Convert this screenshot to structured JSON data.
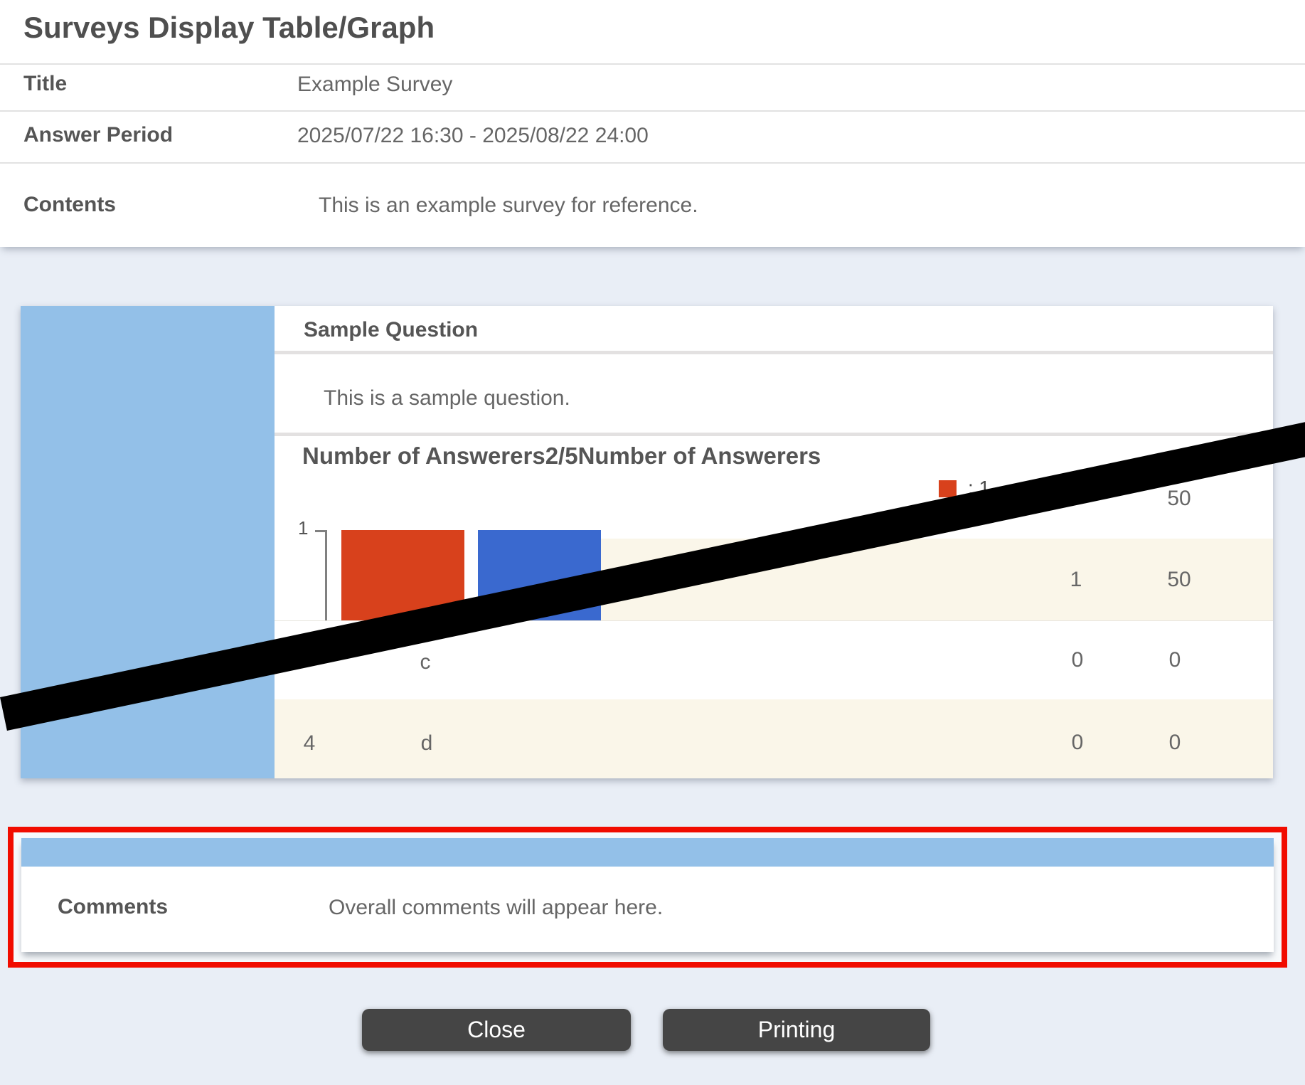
{
  "page": {
    "title": "Surveys Display Table/Graph"
  },
  "header": {
    "title_label": "Title",
    "title_value": "Example Survey",
    "period_label": "Answer Period",
    "period_value": "2025/07/22 16:30 - 2025/08/22 24:00",
    "contents_label": "Contents",
    "contents_value": "This is an example survey for reference."
  },
  "question": {
    "heading": "Sample Question",
    "text": "This is a sample question.",
    "answers_heading": "Number of Answerers2/5Number of Answerers",
    "axis_tick": "1",
    "legend_label": ": 1",
    "table": {
      "rows": [
        {
          "percent": "50"
        },
        {
          "count": "1",
          "percent": "50"
        },
        {
          "choice": "c",
          "count": "0",
          "percent": "0"
        },
        {
          "number": "4",
          "choice": "d",
          "count": "0",
          "percent": "0"
        }
      ]
    }
  },
  "chart_data": {
    "type": "bar",
    "title": "Number of Answerers2/5Number of Answerers",
    "values": [
      1,
      1
    ],
    "bar_colors": [
      "#d8411c",
      "#3a69cf"
    ],
    "ylim": [
      0,
      1
    ],
    "yticks": [
      "1"
    ],
    "legend_visible": [
      ": 1"
    ],
    "grid": false
  },
  "comments": {
    "label": "Comments",
    "value": "Overall comments will appear here."
  },
  "actions": {
    "close": "Close",
    "print": "Printing"
  },
  "colors": {
    "page_background": "#e9eef6",
    "sidebar_blue": "#93c0e8",
    "row_cream": "#faf6e9",
    "bar_red": "#d8411c",
    "bar_blue": "#3a69cf",
    "highlight_red_border": "#f10c00",
    "button_gray": "#454545",
    "redaction_black": "#000000"
  }
}
